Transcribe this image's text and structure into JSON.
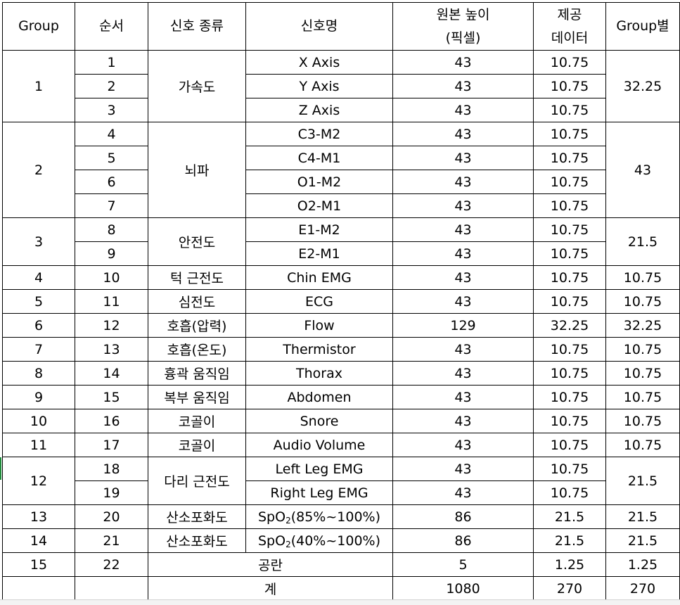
{
  "headers": {
    "group": "Group",
    "order": "순서",
    "signal_type": "신호 종류",
    "signal_name": "신호명",
    "original_height_line1": "원본 높이",
    "original_height_line2": "(픽셀)",
    "provided_line1": "제공",
    "provided_line2": "데이터",
    "group_total": "Group별"
  },
  "rows": [
    {
      "group": "1",
      "order": "1",
      "type": "가속도",
      "name": "X Axis",
      "orig": "43",
      "prov": "10.75",
      "gsum": "32.25"
    },
    {
      "order": "2",
      "name": "Y Axis",
      "orig": "43",
      "prov": "10.75"
    },
    {
      "order": "3",
      "name": "Z Axis",
      "orig": "43",
      "prov": "10.75"
    },
    {
      "group": "2",
      "order": "4",
      "type": "뇌파",
      "name": "C3-M2",
      "orig": "43",
      "prov": "10.75",
      "gsum": "43"
    },
    {
      "order": "5",
      "name": "C4-M1",
      "orig": "43",
      "prov": "10.75"
    },
    {
      "order": "6",
      "name": "O1-M2",
      "orig": "43",
      "prov": "10.75"
    },
    {
      "order": "7",
      "name": "O2-M1",
      "orig": "43",
      "prov": "10.75"
    },
    {
      "group": "3",
      "order": "8",
      "type": "안전도",
      "name": "E1-M2",
      "orig": "43",
      "prov": "10.75",
      "gsum": "21.5"
    },
    {
      "order": "9",
      "name": "E2-M1",
      "orig": "43",
      "prov": "10.75"
    },
    {
      "group": "4",
      "order": "10",
      "type": "턱 근전도",
      "name": "Chin EMG",
      "orig": "43",
      "prov": "10.75",
      "gsum": "10.75"
    },
    {
      "group": "5",
      "order": "11",
      "type": "심전도",
      "name": "ECG",
      "orig": "43",
      "prov": "10.75",
      "gsum": "10.75"
    },
    {
      "group": "6",
      "order": "12",
      "type": "호흡(압력)",
      "name": "Flow",
      "orig": "129",
      "prov": "32.25",
      "gsum": "32.25"
    },
    {
      "group": "7",
      "order": "13",
      "type": "호흡(온도)",
      "name": "Thermistor",
      "orig": "43",
      "prov": "10.75",
      "gsum": "10.75"
    },
    {
      "group": "8",
      "order": "14",
      "type": "흉곽 움직임",
      "name": "Thorax",
      "orig": "43",
      "prov": "10.75",
      "gsum": "10.75"
    },
    {
      "group": "9",
      "order": "15",
      "type": "복부 움직임",
      "name": "Abdomen",
      "orig": "43",
      "prov": "10.75",
      "gsum": "10.75"
    },
    {
      "group": "10",
      "order": "16",
      "type": "코골이",
      "name": "Snore",
      "orig": "43",
      "prov": "10.75",
      "gsum": "10.75"
    },
    {
      "group": "11",
      "order": "17",
      "type": "코골이",
      "name": "Audio Volume",
      "orig": "43",
      "prov": "10.75",
      "gsum": "10.75"
    },
    {
      "group": "12",
      "order": "18",
      "type": "다리 근전도",
      "name": "Left Leg EMG",
      "orig": "43",
      "prov": "10.75",
      "gsum": "21.5"
    },
    {
      "order": "19",
      "name": "Right Leg EMG",
      "orig": "43",
      "prov": "10.75"
    },
    {
      "group": "13",
      "order": "20",
      "type": "산소포화도",
      "name_prefix": "SpO",
      "name_sub": "2",
      "name_suffix": "(85%~100%)",
      "orig": "86",
      "prov": "21.5",
      "gsum": "21.5"
    },
    {
      "group": "14",
      "order": "21",
      "type": "산소포화도",
      "name_prefix": "SpO",
      "name_sub": "2",
      "name_suffix": "(40%~100%)",
      "orig": "86",
      "prov": "21.5",
      "gsum": "21.5"
    },
    {
      "group": "15",
      "order": "22",
      "type": "공란",
      "orig": "5",
      "prov": "1.25",
      "gsum": "1.25"
    }
  ],
  "total": {
    "label": "계",
    "orig": "1080",
    "prov": "270",
    "gsum": "270"
  }
}
